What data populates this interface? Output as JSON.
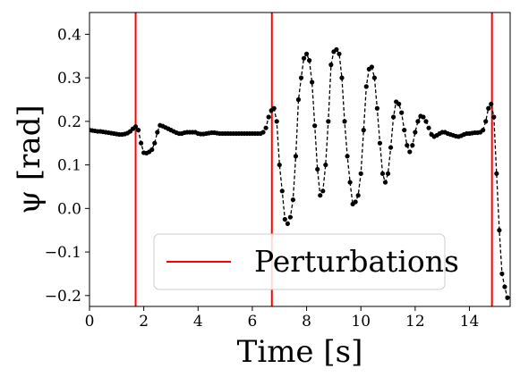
{
  "chart_data": {
    "type": "line",
    "xlabel": "Time [s]",
    "ylabel": "ψ [rad]",
    "xlim": [
      0,
      15.5
    ],
    "ylim": [
      -0.225,
      0.45
    ],
    "xticks": [
      0,
      2,
      4,
      6,
      8,
      10,
      12,
      14
    ],
    "xtick_labels": [
      "0",
      "2",
      "4",
      "6",
      "8",
      "10",
      "12",
      "14"
    ],
    "yticks": [
      -0.2,
      -0.1,
      0.0,
      0.1,
      0.2,
      0.3,
      0.4
    ],
    "ytick_labels": [
      "−0.2",
      "−0.1",
      "0.0",
      "0.1",
      "0.2",
      "0.3",
      "0.4"
    ],
    "grid": false,
    "legend": {
      "placement": "lower-center",
      "entries": [
        {
          "label": "Perturbations",
          "color": "#ff0000",
          "style": "solid"
        }
      ]
    },
    "vlines": {
      "name": "Perturbations",
      "color": "#ff0000",
      "x": [
        1.7,
        6.72,
        14.83
      ]
    },
    "series": [
      {
        "color": "#000000",
        "line_style": "dashed",
        "marker": "circle",
        "x": [
          0.0,
          0.1,
          0.2,
          0.3,
          0.4,
          0.5,
          0.6,
          0.7,
          0.8,
          0.9,
          1.0,
          1.1,
          1.2,
          1.3,
          1.4,
          1.5,
          1.6,
          1.7,
          1.8,
          1.9,
          2.0,
          2.1,
          2.2,
          2.3,
          2.4,
          2.5,
          2.6,
          2.7,
          2.8,
          2.9,
          3.0,
          3.1,
          3.2,
          3.3,
          3.4,
          3.5,
          3.6,
          3.7,
          3.8,
          3.9,
          4.0,
          4.1,
          4.2,
          4.3,
          4.4,
          4.5,
          4.6,
          4.7,
          4.8,
          4.9,
          5.0,
          5.1,
          5.2,
          5.3,
          5.4,
          5.5,
          5.6,
          5.7,
          5.8,
          5.9,
          6.0,
          6.1,
          6.2,
          6.3,
          6.4,
          6.5,
          6.6,
          6.7,
          6.8,
          6.9,
          7.0,
          7.1,
          7.2,
          7.3,
          7.4,
          7.5,
          7.6,
          7.7,
          7.8,
          7.9,
          8.0,
          8.1,
          8.2,
          8.3,
          8.4,
          8.5,
          8.6,
          8.7,
          8.8,
          8.9,
          9.0,
          9.1,
          9.2,
          9.3,
          9.4,
          9.5,
          9.6,
          9.7,
          9.8,
          9.9,
          10.0,
          10.1,
          10.2,
          10.3,
          10.4,
          10.5,
          10.6,
          10.7,
          10.8,
          10.9,
          11.0,
          11.1,
          11.2,
          11.3,
          11.4,
          11.5,
          11.6,
          11.7,
          11.8,
          11.9,
          12.0,
          12.1,
          12.2,
          12.3,
          12.4,
          12.5,
          12.6,
          12.7,
          12.8,
          12.9,
          13.0,
          13.1,
          13.2,
          13.3,
          13.4,
          13.5,
          13.6,
          13.7,
          13.8,
          13.9,
          14.0,
          14.1,
          14.2,
          14.3,
          14.4,
          14.5,
          14.6,
          14.7,
          14.8,
          14.9,
          15.0,
          15.1,
          15.2,
          15.3,
          15.4
        ],
        "y": [
          0.18,
          0.179,
          0.178,
          0.177,
          0.177,
          0.176,
          0.175,
          0.174,
          0.173,
          0.172,
          0.171,
          0.17,
          0.17,
          0.171,
          0.173,
          0.177,
          0.183,
          0.188,
          0.18,
          0.15,
          0.128,
          0.127,
          0.13,
          0.135,
          0.15,
          0.175,
          0.191,
          0.189,
          0.186,
          0.183,
          0.18,
          0.177,
          0.174,
          0.172,
          0.172,
          0.174,
          0.175,
          0.175,
          0.175,
          0.175,
          0.172,
          0.171,
          0.171,
          0.172,
          0.173,
          0.174,
          0.174,
          0.173,
          0.172,
          0.172,
          0.172,
          0.172,
          0.172,
          0.172,
          0.172,
          0.172,
          0.172,
          0.172,
          0.172,
          0.172,
          0.172,
          0.172,
          0.172,
          0.172,
          0.175,
          0.185,
          0.21,
          0.225,
          0.23,
          0.2,
          0.1,
          0.04,
          -0.025,
          -0.035,
          -0.02,
          0.02,
          0.12,
          0.25,
          0.3,
          0.345,
          0.355,
          0.34,
          0.29,
          0.19,
          0.09,
          0.03,
          0.04,
          0.1,
          0.2,
          0.33,
          0.36,
          0.365,
          0.355,
          0.3,
          0.2,
          0.12,
          0.06,
          0.01,
          0.015,
          0.03,
          0.08,
          0.18,
          0.28,
          0.32,
          0.325,
          0.3,
          0.23,
          0.15,
          0.08,
          0.06,
          0.08,
          0.14,
          0.21,
          0.245,
          0.24,
          0.22,
          0.18,
          0.145,
          0.13,
          0.145,
          0.175,
          0.2,
          0.212,
          0.21,
          0.2,
          0.185,
          0.17,
          0.165,
          0.168,
          0.172,
          0.175,
          0.175,
          0.172,
          0.17,
          0.168,
          0.166,
          0.165,
          0.167,
          0.17,
          0.172,
          0.172,
          0.173,
          0.174,
          0.174,
          0.175,
          0.18,
          0.2,
          0.23,
          0.24,
          0.21,
          0.08,
          -0.05,
          -0.15,
          -0.18,
          -0.205
        ]
      }
    ]
  }
}
